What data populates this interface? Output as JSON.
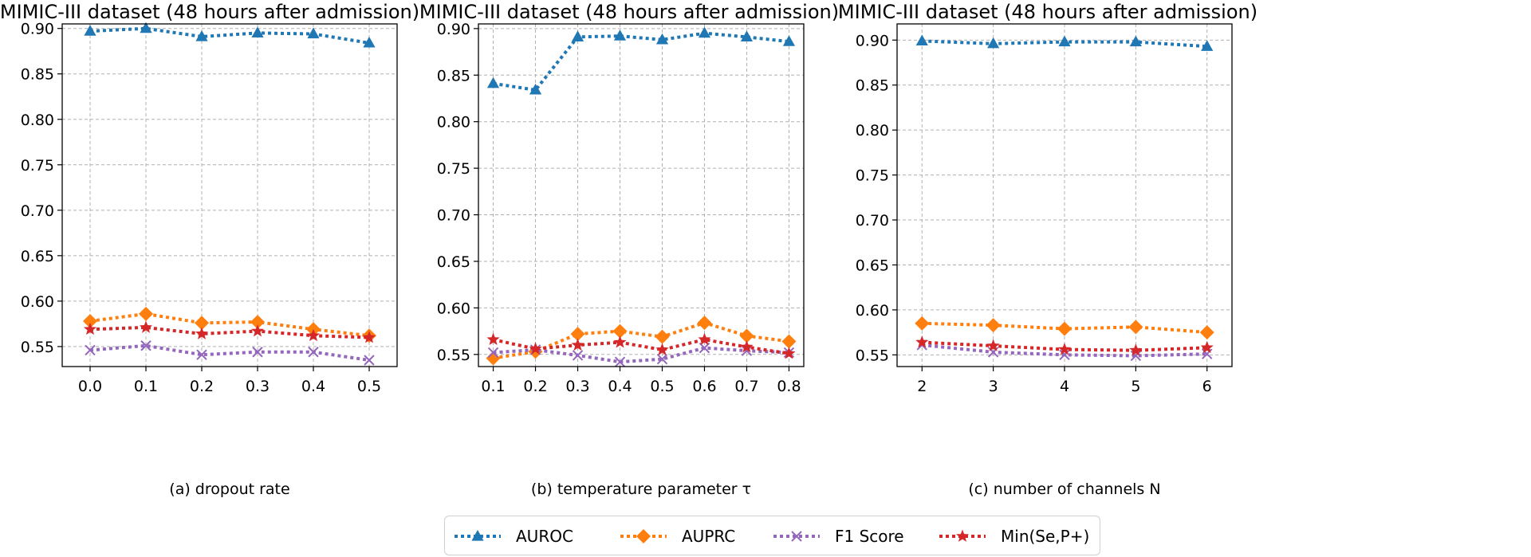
{
  "colors": {
    "AUROC": "#1f77b4",
    "AUPRC": "#ff7f0e",
    "F1 Score": "#9467bd",
    "Min(Se,P+)": "#d62728"
  },
  "legend": {
    "placement": "bottom-center",
    "entries": [
      "AUROC",
      "AUPRC",
      "F1 Score",
      "Min(Se,P+)"
    ]
  },
  "chart_data": [
    {
      "type": "line",
      "title": "MIMIC-III dataset (48 hours after admission)",
      "xlabel": "(a) dropout rate",
      "ylabel": "",
      "x": [
        0.0,
        0.1,
        0.2,
        0.3,
        0.4,
        0.5
      ],
      "x_ticks": [
        "0.0",
        "0.1",
        "0.2",
        "0.3",
        "0.4",
        "0.5"
      ],
      "xlim": [
        -0.05,
        0.55
      ],
      "ylim": [
        0.528,
        0.905
      ],
      "y_ticks": [
        "0.55",
        "0.60",
        "0.65",
        "0.70",
        "0.75",
        "0.80",
        "0.85",
        "0.90"
      ],
      "grid": true,
      "series": [
        {
          "name": "AUROC",
          "marker": "triangle",
          "values": [
            0.897,
            0.9,
            0.891,
            0.895,
            0.894,
            0.884
          ]
        },
        {
          "name": "AUPRC",
          "marker": "diamond",
          "values": [
            0.578,
            0.586,
            0.576,
            0.577,
            0.569,
            0.562
          ]
        },
        {
          "name": "F1 Score",
          "marker": "x",
          "values": [
            0.546,
            0.551,
            0.541,
            0.544,
            0.544,
            0.535
          ]
        },
        {
          "name": "Min(Se,P+)",
          "marker": "star",
          "values": [
            0.569,
            0.571,
            0.564,
            0.567,
            0.562,
            0.56
          ]
        }
      ]
    },
    {
      "type": "line",
      "title": "MIMIC-III dataset (48 hours after admission)",
      "xlabel": "(b) temperature parameter τ",
      "ylabel": "",
      "x": [
        0.1,
        0.2,
        0.3,
        0.4,
        0.5,
        0.6,
        0.7,
        0.8
      ],
      "x_ticks": [
        "0.1",
        "0.2",
        "0.3",
        "0.4",
        "0.5",
        "0.6",
        "0.7",
        "0.8"
      ],
      "xlim": [
        0.065,
        0.835
      ],
      "ylim": [
        0.537,
        0.905
      ],
      "y_ticks": [
        "0.55",
        "0.60",
        "0.65",
        "0.70",
        "0.75",
        "0.80",
        "0.85",
        "0.90"
      ],
      "grid": true,
      "series": [
        {
          "name": "AUROC",
          "marker": "triangle",
          "values": [
            0.841,
            0.834,
            0.891,
            0.892,
            0.888,
            0.895,
            0.891,
            0.886
          ]
        },
        {
          "name": "AUPRC",
          "marker": "diamond",
          "values": [
            0.546,
            0.553,
            0.572,
            0.575,
            0.569,
            0.584,
            0.57,
            0.564
          ]
        },
        {
          "name": "F1 Score",
          "marker": "x",
          "values": [
            0.552,
            0.555,
            0.549,
            0.542,
            0.545,
            0.557,
            0.554,
            0.552
          ]
        },
        {
          "name": "Min(Se,P+)",
          "marker": "star",
          "values": [
            0.566,
            0.556,
            0.56,
            0.563,
            0.555,
            0.566,
            0.558,
            0.551
          ]
        }
      ]
    },
    {
      "type": "line",
      "title": "MIMIC-III dataset (48 hours after admission)",
      "xlabel": "(c) number of channels N",
      "ylabel": "",
      "x": [
        2,
        3,
        4,
        5,
        6
      ],
      "x_ticks": [
        "2",
        "3",
        "4",
        "5",
        "6"
      ],
      "xlim": [
        1.65,
        6.35
      ],
      "ylim": [
        0.537,
        0.918
      ],
      "y_ticks": [
        "0.55",
        "0.60",
        "0.65",
        "0.70",
        "0.75",
        "0.80",
        "0.85",
        "0.90"
      ],
      "grid": true,
      "series": [
        {
          "name": "AUROC",
          "marker": "triangle",
          "values": [
            0.899,
            0.896,
            0.898,
            0.898,
            0.893
          ]
        },
        {
          "name": "AUPRC",
          "marker": "diamond",
          "values": [
            0.585,
            0.583,
            0.579,
            0.581,
            0.575
          ]
        },
        {
          "name": "F1 Score",
          "marker": "x",
          "values": [
            0.561,
            0.553,
            0.55,
            0.549,
            0.551
          ]
        },
        {
          "name": "Min(Se,P+)",
          "marker": "star",
          "values": [
            0.564,
            0.56,
            0.556,
            0.555,
            0.558
          ]
        }
      ]
    }
  ]
}
